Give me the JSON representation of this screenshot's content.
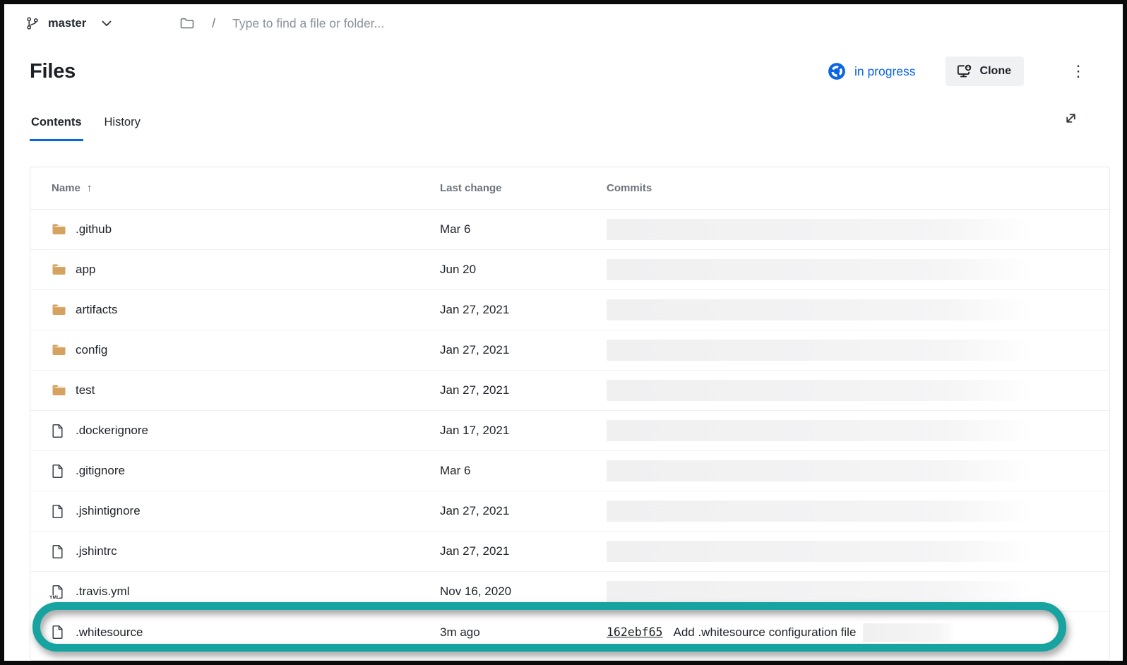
{
  "topbar": {
    "branch": "master",
    "path_separator": "/",
    "search_placeholder": "Type to find a file or folder..."
  },
  "header": {
    "title": "Files",
    "build_status_label": "in progress",
    "clone_label": "Clone"
  },
  "tabs": [
    {
      "label": "Contents",
      "active": true
    },
    {
      "label": "History",
      "active": false
    }
  ],
  "icons": {
    "kebab_glyph": "⋮",
    "sort_ascending_glyph": "↑",
    "yml_badge": "YML"
  },
  "colors": {
    "accent_blue": "#0C66E4",
    "folder_tan": "#D5A35F",
    "highlight_teal": "#17A3A0"
  },
  "table": {
    "columns": [
      "Name",
      "Last change",
      "Commits"
    ],
    "rows": [
      {
        "name": ".github",
        "type": "folder",
        "last_change": "Mar 6",
        "commits_redacted": true
      },
      {
        "name": "app",
        "type": "folder",
        "last_change": "Jun 20",
        "commits_redacted": true
      },
      {
        "name": "artifacts",
        "type": "folder",
        "last_change": "Jan 27, 2021",
        "commits_redacted": true
      },
      {
        "name": "config",
        "type": "folder",
        "last_change": "Jan 27, 2021",
        "commits_redacted": true
      },
      {
        "name": "test",
        "type": "folder",
        "last_change": "Jan 27, 2021",
        "commits_redacted": true
      },
      {
        "name": ".dockerignore",
        "type": "file",
        "last_change": "Jan 17, 2021",
        "commits_redacted": true
      },
      {
        "name": ".gitignore",
        "type": "file",
        "last_change": "Mar 6",
        "commits_redacted": true
      },
      {
        "name": ".jshintignore",
        "type": "file",
        "last_change": "Jan 27, 2021",
        "commits_redacted": true
      },
      {
        "name": ".jshintrc",
        "type": "file",
        "last_change": "Jan 27, 2021",
        "commits_redacted": true
      },
      {
        "name": ".travis.yml",
        "type": "yml",
        "last_change": "Nov 16, 2020",
        "commits_redacted": true
      },
      {
        "name": ".whitesource",
        "type": "file",
        "last_change": "3m ago",
        "commit_hash": "162ebf65",
        "commit_message": "Add .whitesource configuration file",
        "commits_partially_redacted": true,
        "highlighted": true
      }
    ]
  }
}
